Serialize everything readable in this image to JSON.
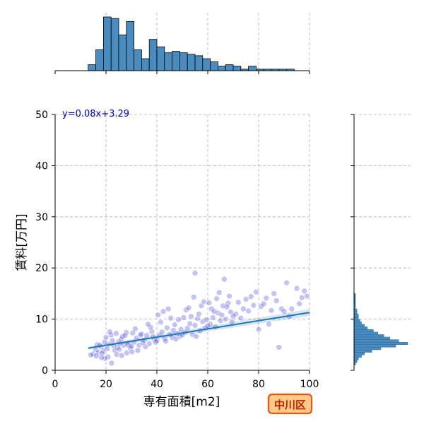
{
  "chart_data": {
    "type": "scatter",
    "title": "",
    "xlabel": "専有面積[m2]",
    "ylabel": "賃料[万円]",
    "xlim": [
      0,
      100
    ],
    "ylim": [
      0,
      50
    ],
    "xticks": [
      0,
      20,
      40,
      60,
      80,
      100
    ],
    "yticks": [
      0,
      10,
      20,
      30,
      40,
      50
    ],
    "grid": true,
    "regression": {
      "slope": 0.08,
      "intercept": 3.29,
      "x_range": [
        13,
        100
      ],
      "label": "y=0.08x+3.29"
    },
    "badge": "中川区",
    "colors": {
      "points": "#2a2ad0",
      "points_edge": "#ffffff",
      "regression_line": "#1f77b4",
      "histogram": "#4a8cbf",
      "badge_fill": "#ffc98a",
      "badge_border": "#ee5511",
      "equation_text": "#0000bb"
    },
    "points": [
      [
        20,
        6.4
      ],
      [
        21,
        5.1
      ],
      [
        22,
        6.9
      ],
      [
        23,
        4.8
      ],
      [
        24,
        7.2
      ],
      [
        25,
        5.6
      ],
      [
        26,
        6.1
      ],
      [
        27,
        4.9
      ],
      [
        28,
        7.4
      ],
      [
        29,
        5.3
      ],
      [
        20.5,
        4.2
      ],
      [
        22.5,
        5.8
      ],
      [
        24.5,
        4.5
      ],
      [
        26.5,
        6.6
      ],
      [
        28.5,
        5.0
      ],
      [
        21.5,
        7.5
      ],
      [
        23.5,
        3.9
      ],
      [
        25.5,
        5.2
      ],
      [
        27.5,
        6.8
      ],
      [
        29.5,
        4.4
      ],
      [
        15,
        3.2
      ],
      [
        16,
        4.0
      ],
      [
        17,
        3.5
      ],
      [
        18,
        4.6
      ],
      [
        19,
        3.8
      ],
      [
        14,
        3.0
      ],
      [
        16.5,
        5.0
      ],
      [
        18.5,
        3.3
      ],
      [
        17.5,
        4.9
      ],
      [
        19.5,
        5.5
      ],
      [
        31,
        5.5
      ],
      [
        32,
        6.3
      ],
      [
        33,
        4.9
      ],
      [
        34,
        7.1
      ],
      [
        35,
        5.9
      ],
      [
        36,
        6.8
      ],
      [
        37,
        5.2
      ],
      [
        38,
        7.6
      ],
      [
        39,
        6.0
      ],
      [
        30,
        4.7
      ],
      [
        31.5,
        8.1
      ],
      [
        33.5,
        6.9
      ],
      [
        35.5,
        4.6
      ],
      [
        37.5,
        8.4
      ],
      [
        39.5,
        5.5
      ],
      [
        32.5,
        3.9
      ],
      [
        34.5,
        5.4
      ],
      [
        36.5,
        9.0
      ],
      [
        38.5,
        6.6
      ],
      [
        30.5,
        7.3
      ],
      [
        41,
        6.9
      ],
      [
        42,
        7.5
      ],
      [
        43,
        6.2
      ],
      [
        44,
        8.3
      ],
      [
        45,
        7.0
      ],
      [
        46,
        6.4
      ],
      [
        47,
        8.9
      ],
      [
        48,
        7.2
      ],
      [
        49,
        6.6
      ],
      [
        40,
        5.8
      ],
      [
        41.5,
        9.4
      ],
      [
        43.5,
        5.7
      ],
      [
        45.5,
        10.2
      ],
      [
        47.5,
        6.1
      ],
      [
        49.5,
        8.0
      ],
      [
        42.5,
        11.5
      ],
      [
        44.5,
        12.0
      ],
      [
        46.5,
        7.8
      ],
      [
        48.5,
        9.9
      ],
      [
        40.5,
        10.8
      ],
      [
        51,
        7.4
      ],
      [
        52,
        8.2
      ],
      [
        53,
        9.1
      ],
      [
        54,
        7.0
      ],
      [
        55,
        8.8
      ],
      [
        56,
        10.1
      ],
      [
        57,
        7.7
      ],
      [
        58,
        9.5
      ],
      [
        59,
        8.3
      ],
      [
        50,
        6.9
      ],
      [
        51.5,
        11.8
      ],
      [
        53.5,
        10.5
      ],
      [
        55.5,
        6.6
      ],
      [
        57.5,
        12.6
      ],
      [
        59.5,
        9.9
      ],
      [
        54.5,
        14.3
      ],
      [
        52.5,
        12.2
      ],
      [
        56.5,
        11.0
      ],
      [
        58.5,
        13.4
      ],
      [
        50.5,
        10.3
      ],
      [
        61,
        9.0
      ],
      [
        62,
        10.3
      ],
      [
        63,
        8.5
      ],
      [
        64,
        11.2
      ],
      [
        65,
        9.7
      ],
      [
        66,
        12.6
      ],
      [
        67,
        10.0
      ],
      [
        68,
        13.1
      ],
      [
        69,
        11.4
      ],
      [
        60,
        8.7
      ],
      [
        61.5,
        12.0
      ],
      [
        63.5,
        14.0
      ],
      [
        65.5,
        10.8
      ],
      [
        67.5,
        12.4
      ],
      [
        69.5,
        9.5
      ],
      [
        64.5,
        15.2
      ],
      [
        66.5,
        17.8
      ],
      [
        62.5,
        11.5
      ],
      [
        68.5,
        14.5
      ],
      [
        60.5,
        13.2
      ],
      [
        71,
        11.0
      ],
      [
        72,
        13.3
      ],
      [
        73,
        10.2
      ],
      [
        74,
        12.0
      ],
      [
        75,
        13.9
      ],
      [
        76,
        11.6
      ],
      [
        77,
        14.4
      ],
      [
        78,
        12.7
      ],
      [
        79,
        15.3
      ],
      [
        70,
        10.6
      ],
      [
        81,
        12.5
      ],
      [
        83,
        14.1
      ],
      [
        85,
        11.7
      ],
      [
        87,
        13.6
      ],
      [
        88,
        4.5
      ],
      [
        84,
        9.0
      ],
      [
        80,
        8.0
      ],
      [
        82,
        13.0
      ],
      [
        86,
        15.0
      ],
      [
        89,
        12.0
      ],
      [
        55,
        19.0
      ],
      [
        91,
        17.1
      ],
      [
        95,
        16.0
      ],
      [
        97,
        14.2
      ],
      [
        99,
        14.5
      ],
      [
        93,
        12.0
      ],
      [
        96,
        13.0
      ],
      [
        90,
        11.5
      ],
      [
        98,
        15.5
      ],
      [
        92,
        10.5
      ],
      [
        22.2,
        1.4
      ],
      [
        20.8,
        2.6
      ],
      [
        24.2,
        3.1
      ],
      [
        26.2,
        2.9
      ],
      [
        28.2,
        3.4
      ],
      [
        19.6,
        2.3
      ],
      [
        18.2,
        2.5
      ],
      [
        16.2,
        2.8
      ],
      [
        30.2,
        3.6
      ],
      [
        25.2,
        4.1
      ]
    ],
    "hist_x": {
      "bin_start": 13,
      "bin_width": 3,
      "counts": [
        4,
        14,
        36,
        35,
        24,
        33,
        14,
        8,
        21,
        16,
        12,
        13,
        12,
        11,
        10,
        8,
        6,
        3,
        4,
        3,
        1,
        3,
        1,
        1,
        1,
        1,
        1
      ]
    },
    "hist_y": {
      "bin_start": 1,
      "bin_width": 0.5,
      "counts": [
        1,
        2,
        3,
        5,
        7,
        12,
        18,
        28,
        36,
        30,
        24,
        20,
        16,
        13,
        9,
        7,
        5,
        4,
        3,
        3,
        2,
        2,
        1,
        1,
        1,
        1,
        1,
        1
      ]
    }
  }
}
